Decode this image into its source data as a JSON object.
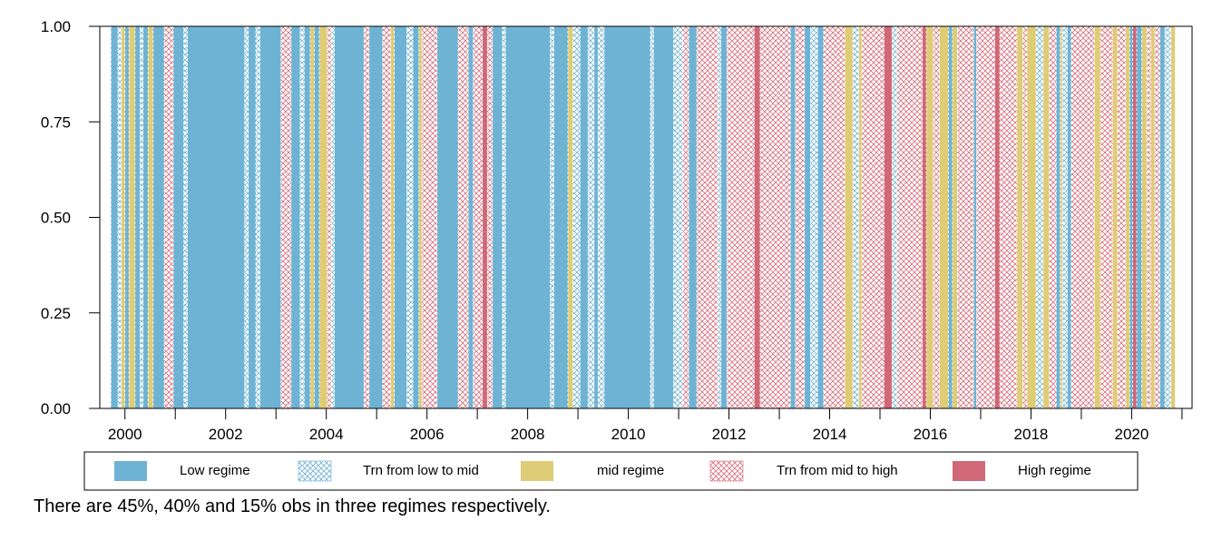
{
  "chart_data": {
    "type": "bar",
    "title": "",
    "xlabel": "",
    "ylabel": "",
    "ylim": [
      0,
      1
    ],
    "xlim": [
      1999.5,
      2021.2
    ],
    "y_ticks": [
      "0.00",
      "0.25",
      "0.50",
      "0.75",
      "1.00"
    ],
    "x_ticks": [
      "2000",
      "2002",
      "2004",
      "2006",
      "2008",
      "2010",
      "2012",
      "2014",
      "2016",
      "2018",
      "2020"
    ],
    "grid": false,
    "legend_position": "bottom",
    "series": [
      {
        "key": "low",
        "name": "Low regime",
        "color": "#6eb3d4",
        "pattern": "solid"
      },
      {
        "key": "tlm",
        "name": "Trn from low to mid",
        "color": "#6eb3d4",
        "pattern": "crosshatch"
      },
      {
        "key": "mid",
        "name": "mid regime",
        "color": "#dfcc76",
        "pattern": "solid"
      },
      {
        "key": "tmh",
        "name": "Trn from mid to high",
        "color": "#d96d7a",
        "pattern": "crosshatch"
      },
      {
        "key": "high",
        "name": "High regime",
        "color": "#d06878",
        "pattern": "solid"
      }
    ],
    "periods": [
      {
        "start": 1999.72,
        "end": 1999.86,
        "regime": "low"
      },
      {
        "start": 1999.86,
        "end": 1999.93,
        "regime": "tlm"
      },
      {
        "start": 1999.93,
        "end": 2000.0,
        "regime": "mid"
      },
      {
        "start": 2000.0,
        "end": 2000.08,
        "regime": "low"
      },
      {
        "start": 2000.08,
        "end": 2000.2,
        "regime": "mid"
      },
      {
        "start": 2000.2,
        "end": 2000.3,
        "regime": "low"
      },
      {
        "start": 2000.3,
        "end": 2000.36,
        "regime": "tlm"
      },
      {
        "start": 2000.36,
        "end": 2000.46,
        "regime": "low"
      },
      {
        "start": 2000.46,
        "end": 2000.56,
        "regime": "mid"
      },
      {
        "start": 2000.56,
        "end": 2000.78,
        "regime": "low"
      },
      {
        "start": 2000.78,
        "end": 2000.96,
        "regime": "tmh"
      },
      {
        "start": 2000.96,
        "end": 2001.17,
        "regime": "low"
      },
      {
        "start": 2001.17,
        "end": 2001.24,
        "regime": "tlm"
      },
      {
        "start": 2001.24,
        "end": 2002.38,
        "regime": "low"
      },
      {
        "start": 2002.38,
        "end": 2002.45,
        "regime": "tlm"
      },
      {
        "start": 2002.45,
        "end": 2002.6,
        "regime": "low"
      },
      {
        "start": 2002.6,
        "end": 2002.68,
        "regime": "tlm"
      },
      {
        "start": 2002.68,
        "end": 2003.1,
        "regime": "low"
      },
      {
        "start": 2003.1,
        "end": 2003.3,
        "regime": "tmh"
      },
      {
        "start": 2003.3,
        "end": 2003.48,
        "regime": "low"
      },
      {
        "start": 2003.48,
        "end": 2003.56,
        "regime": "tlm"
      },
      {
        "start": 2003.56,
        "end": 2003.68,
        "regime": "low"
      },
      {
        "start": 2003.68,
        "end": 2003.76,
        "regime": "mid"
      },
      {
        "start": 2003.76,
        "end": 2003.86,
        "regime": "low"
      },
      {
        "start": 2003.86,
        "end": 2004.02,
        "regime": "mid"
      },
      {
        "start": 2004.02,
        "end": 2004.1,
        "regime": "tmh"
      },
      {
        "start": 2004.1,
        "end": 2004.16,
        "regime": "tlm"
      },
      {
        "start": 2004.16,
        "end": 2004.75,
        "regime": "low"
      },
      {
        "start": 2004.75,
        "end": 2004.85,
        "regime": "tmh"
      },
      {
        "start": 2004.85,
        "end": 2005.12,
        "regime": "low"
      },
      {
        "start": 2005.12,
        "end": 2005.28,
        "regime": "tmh"
      },
      {
        "start": 2005.28,
        "end": 2005.35,
        "regime": "mid"
      },
      {
        "start": 2005.35,
        "end": 2005.6,
        "regime": "low"
      },
      {
        "start": 2005.6,
        "end": 2005.72,
        "regime": "tlm"
      },
      {
        "start": 2005.72,
        "end": 2005.84,
        "regime": "low"
      },
      {
        "start": 2005.84,
        "end": 2005.9,
        "regime": "mid"
      },
      {
        "start": 2005.9,
        "end": 2006.2,
        "regime": "tmh"
      },
      {
        "start": 2006.2,
        "end": 2006.62,
        "regime": "low"
      },
      {
        "start": 2006.62,
        "end": 2006.82,
        "regime": "tmh"
      },
      {
        "start": 2006.82,
        "end": 2006.92,
        "regime": "low"
      },
      {
        "start": 2006.92,
        "end": 2007.1,
        "regime": "tmh"
      },
      {
        "start": 2007.1,
        "end": 2007.2,
        "regime": "high"
      },
      {
        "start": 2007.2,
        "end": 2007.3,
        "regime": "tmh"
      },
      {
        "start": 2007.3,
        "end": 2007.5,
        "regime": "low"
      },
      {
        "start": 2007.5,
        "end": 2007.56,
        "regime": "tlm"
      },
      {
        "start": 2007.56,
        "end": 2008.45,
        "regime": "low"
      },
      {
        "start": 2008.45,
        "end": 2008.52,
        "regime": "tlm"
      },
      {
        "start": 2008.52,
        "end": 2008.8,
        "regime": "low"
      },
      {
        "start": 2008.8,
        "end": 2008.9,
        "regime": "mid"
      },
      {
        "start": 2008.9,
        "end": 2009.04,
        "regime": "tlm"
      },
      {
        "start": 2009.04,
        "end": 2009.2,
        "regime": "low"
      },
      {
        "start": 2009.2,
        "end": 2009.32,
        "regime": "tlm"
      },
      {
        "start": 2009.32,
        "end": 2009.4,
        "regime": "low"
      },
      {
        "start": 2009.4,
        "end": 2009.52,
        "regime": "tlm"
      },
      {
        "start": 2009.52,
        "end": 2010.44,
        "regime": "low"
      },
      {
        "start": 2010.44,
        "end": 2010.5,
        "regime": "tlm"
      },
      {
        "start": 2010.5,
        "end": 2010.9,
        "regime": "low"
      },
      {
        "start": 2010.9,
        "end": 2011.08,
        "regime": "tlm"
      },
      {
        "start": 2011.08,
        "end": 2011.2,
        "regime": "tmh"
      },
      {
        "start": 2011.2,
        "end": 2011.36,
        "regime": "low"
      },
      {
        "start": 2011.36,
        "end": 2011.78,
        "regime": "tmh"
      },
      {
        "start": 2011.78,
        "end": 2011.84,
        "regime": "tlm"
      },
      {
        "start": 2011.84,
        "end": 2011.96,
        "regime": "low"
      },
      {
        "start": 2011.96,
        "end": 2012.5,
        "regime": "tmh"
      },
      {
        "start": 2012.5,
        "end": 2012.62,
        "regime": "high"
      },
      {
        "start": 2012.62,
        "end": 2013.22,
        "regime": "tmh"
      },
      {
        "start": 2013.22,
        "end": 2013.32,
        "regime": "low"
      },
      {
        "start": 2013.32,
        "end": 2013.5,
        "regime": "tmh"
      },
      {
        "start": 2013.5,
        "end": 2013.62,
        "regime": "low"
      },
      {
        "start": 2013.62,
        "end": 2013.76,
        "regime": "tlm"
      },
      {
        "start": 2013.76,
        "end": 2013.88,
        "regime": "low"
      },
      {
        "start": 2013.88,
        "end": 2014.3,
        "regime": "tmh"
      },
      {
        "start": 2014.3,
        "end": 2014.46,
        "regime": "mid"
      },
      {
        "start": 2014.46,
        "end": 2014.58,
        "regime": "tlm"
      },
      {
        "start": 2014.58,
        "end": 2014.64,
        "regime": "mid"
      },
      {
        "start": 2014.64,
        "end": 2015.08,
        "regime": "tmh"
      },
      {
        "start": 2015.08,
        "end": 2015.24,
        "regime": "high"
      },
      {
        "start": 2015.24,
        "end": 2015.34,
        "regime": "tlm"
      },
      {
        "start": 2015.34,
        "end": 2015.84,
        "regime": "tmh"
      },
      {
        "start": 2015.84,
        "end": 2015.92,
        "regime": "high"
      },
      {
        "start": 2015.92,
        "end": 2016.06,
        "regime": "mid"
      },
      {
        "start": 2016.06,
        "end": 2016.18,
        "regime": "tmh"
      },
      {
        "start": 2016.18,
        "end": 2016.36,
        "regime": "mid"
      },
      {
        "start": 2016.36,
        "end": 2016.44,
        "regime": "low"
      },
      {
        "start": 2016.44,
        "end": 2016.54,
        "regime": "mid"
      },
      {
        "start": 2016.54,
        "end": 2016.86,
        "regime": "tmh"
      },
      {
        "start": 2016.86,
        "end": 2016.92,
        "regime": "low"
      },
      {
        "start": 2016.92,
        "end": 2017.28,
        "regime": "tmh"
      },
      {
        "start": 2017.28,
        "end": 2017.38,
        "regime": "high"
      },
      {
        "start": 2017.38,
        "end": 2017.72,
        "regime": "tmh"
      },
      {
        "start": 2017.72,
        "end": 2017.84,
        "regime": "mid"
      },
      {
        "start": 2017.84,
        "end": 2017.92,
        "regime": "tmh"
      },
      {
        "start": 2017.92,
        "end": 2018.1,
        "regime": "mid"
      },
      {
        "start": 2018.1,
        "end": 2018.24,
        "regime": "tlm"
      },
      {
        "start": 2018.24,
        "end": 2018.36,
        "regime": "mid"
      },
      {
        "start": 2018.36,
        "end": 2018.5,
        "regime": "tmh"
      },
      {
        "start": 2018.5,
        "end": 2018.58,
        "regime": "low"
      },
      {
        "start": 2018.58,
        "end": 2018.62,
        "regime": "mid"
      },
      {
        "start": 2018.62,
        "end": 2018.72,
        "regime": "tlm"
      },
      {
        "start": 2018.72,
        "end": 2018.8,
        "regime": "low"
      },
      {
        "start": 2018.8,
        "end": 2019.26,
        "regime": "tmh"
      },
      {
        "start": 2019.26,
        "end": 2019.38,
        "regime": "mid"
      },
      {
        "start": 2019.38,
        "end": 2019.62,
        "regime": "tmh"
      },
      {
        "start": 2019.62,
        "end": 2019.72,
        "regime": "mid"
      },
      {
        "start": 2019.72,
        "end": 2019.88,
        "regime": "tmh"
      },
      {
        "start": 2019.88,
        "end": 2019.96,
        "regime": "mid"
      },
      {
        "start": 2019.96,
        "end": 2020.02,
        "regime": "low"
      },
      {
        "start": 2020.02,
        "end": 2020.1,
        "regime": "high"
      },
      {
        "start": 2020.1,
        "end": 2020.2,
        "regime": "low"
      },
      {
        "start": 2020.2,
        "end": 2020.3,
        "regime": "mid"
      },
      {
        "start": 2020.3,
        "end": 2020.38,
        "regime": "tmh"
      },
      {
        "start": 2020.38,
        "end": 2020.46,
        "regime": "mid"
      },
      {
        "start": 2020.46,
        "end": 2020.56,
        "regime": "tmh"
      },
      {
        "start": 2020.56,
        "end": 2020.66,
        "regime": "low"
      },
      {
        "start": 2020.66,
        "end": 2020.78,
        "regime": "tlm"
      },
      {
        "start": 2020.78,
        "end": 2020.86,
        "regime": "mid"
      }
    ]
  },
  "note": "There are 45%, 40% and 15% obs in three regimes respectively."
}
